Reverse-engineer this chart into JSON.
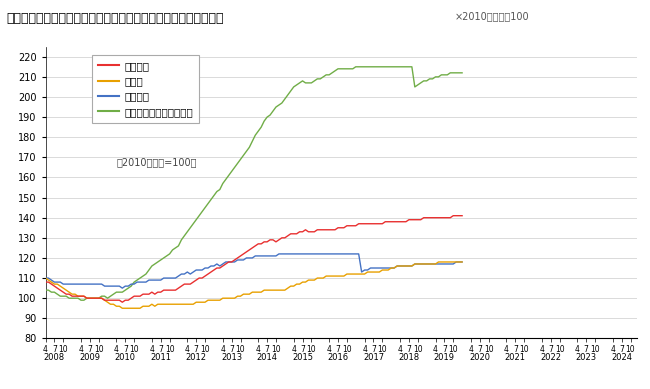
{
  "title": "＜不動産価格指数（住宅）（令和６年１０月分・季節調整値）＞",
  "title_note": "×2010年平均＝100",
  "ylabel_note": "（2010年平均=100）",
  "ylim": [
    80,
    225
  ],
  "yticks": [
    80,
    90,
    100,
    110,
    120,
    130,
    140,
    150,
    160,
    170,
    180,
    190,
    200,
    210,
    220
  ],
  "legend": [
    "住宅総合",
    "住宅地",
    "戸建住宅",
    "マンション（区分所有）"
  ],
  "colors": [
    "#e83030",
    "#e8a000",
    "#4472c4",
    "#70ad47"
  ],
  "住宅総合": [
    108,
    108,
    107,
    106,
    105,
    104,
    103,
    102,
    102,
    101,
    101,
    101,
    101,
    101,
    100,
    100,
    100,
    100,
    100,
    100,
    99,
    99,
    99,
    99,
    99,
    99,
    98,
    99,
    99,
    100,
    101,
    101,
    101,
    102,
    102,
    102,
    103,
    102,
    103,
    103,
    104,
    104,
    104,
    104,
    104,
    105,
    106,
    107,
    107,
    107,
    108,
    109,
    110,
    110,
    111,
    112,
    113,
    114,
    115,
    115,
    116,
    117,
    118,
    118,
    119,
    120,
    121,
    122,
    123,
    124,
    125,
    126,
    127,
    127,
    128,
    128,
    129,
    129,
    128,
    129,
    130,
    130,
    131,
    132,
    132,
    132,
    133,
    133,
    134,
    133,
    133,
    133,
    134,
    134,
    134,
    134,
    134,
    134,
    134,
    135,
    135,
    135,
    136,
    136,
    136,
    136,
    137,
    137,
    137,
    137,
    137,
    137,
    137,
    137,
    137,
    138,
    138,
    138,
    138,
    138,
    138,
    138,
    138,
    139,
    139,
    139,
    139,
    139,
    140,
    140,
    140,
    140,
    140,
    140,
    140,
    140,
    140,
    140,
    141,
    141,
    141,
    141
  ],
  "住宅地": [
    110,
    109,
    108,
    107,
    107,
    106,
    105,
    104,
    103,
    102,
    102,
    101,
    101,
    101,
    100,
    100,
    100,
    100,
    100,
    100,
    99,
    98,
    97,
    97,
    96,
    96,
    95,
    95,
    95,
    95,
    95,
    95,
    95,
    96,
    96,
    96,
    97,
    96,
    97,
    97,
    97,
    97,
    97,
    97,
    97,
    97,
    97,
    97,
    97,
    97,
    97,
    98,
    98,
    98,
    98,
    99,
    99,
    99,
    99,
    99,
    100,
    100,
    100,
    100,
    100,
    101,
    101,
    102,
    102,
    102,
    103,
    103,
    103,
    103,
    104,
    104,
    104,
    104,
    104,
    104,
    104,
    104,
    105,
    106,
    106,
    107,
    107,
    108,
    108,
    109,
    109,
    109,
    110,
    110,
    110,
    111,
    111,
    111,
    111,
    111,
    111,
    111,
    112,
    112,
    112,
    112,
    112,
    112,
    112,
    113,
    113,
    113,
    113,
    113,
    114,
    114,
    114,
    115,
    115,
    116,
    116,
    116,
    116,
    116,
    116,
    117,
    117,
    117,
    117,
    117,
    117,
    117,
    117,
    118,
    118,
    118,
    118,
    118,
    118,
    118,
    118,
    118
  ],
  "戸建住宅": [
    110,
    110,
    109,
    108,
    108,
    108,
    107,
    107,
    107,
    107,
    107,
    107,
    107,
    107,
    107,
    107,
    107,
    107,
    107,
    107,
    106,
    106,
    106,
    106,
    106,
    106,
    105,
    106,
    106,
    107,
    107,
    108,
    108,
    108,
    108,
    109,
    109,
    109,
    109,
    109,
    110,
    110,
    110,
    110,
    110,
    111,
    112,
    112,
    113,
    112,
    113,
    114,
    114,
    114,
    115,
    115,
    116,
    116,
    117,
    116,
    117,
    118,
    118,
    118,
    118,
    119,
    119,
    119,
    120,
    120,
    120,
    121,
    121,
    121,
    121,
    121,
    121,
    121,
    121,
    122,
    122,
    122,
    122,
    122,
    122,
    122,
    122,
    122,
    122,
    122,
    122,
    122,
    122,
    122,
    122,
    122,
    122,
    122,
    122,
    122,
    122,
    122,
    122,
    122,
    122,
    122,
    122,
    113,
    114,
    114,
    115,
    115,
    115,
    115,
    115,
    115,
    115,
    115,
    115,
    116,
    116,
    116,
    116,
    116,
    116,
    117,
    117,
    117,
    117,
    117,
    117,
    117,
    117,
    117,
    117,
    117,
    117,
    117,
    117,
    118,
    118,
    118
  ],
  "マンション": [
    104,
    104,
    103,
    103,
    102,
    101,
    101,
    101,
    100,
    100,
    100,
    100,
    99,
    99,
    100,
    100,
    100,
    100,
    100,
    101,
    101,
    100,
    101,
    102,
    103,
    103,
    103,
    104,
    105,
    106,
    108,
    109,
    110,
    111,
    112,
    114,
    116,
    117,
    118,
    119,
    120,
    121,
    122,
    124,
    125,
    126,
    129,
    131,
    133,
    135,
    137,
    139,
    141,
    143,
    145,
    147,
    149,
    151,
    153,
    154,
    157,
    159,
    161,
    163,
    165,
    167,
    169,
    171,
    173,
    175,
    178,
    181,
    183,
    185,
    188,
    190,
    191,
    193,
    195,
    196,
    197,
    199,
    201,
    203,
    205,
    206,
    207,
    208,
    207,
    207,
    207,
    208,
    209,
    209,
    210,
    211,
    211,
    212,
    213,
    214,
    214,
    214,
    214,
    214,
    214,
    215,
    215,
    215,
    215,
    215,
    215,
    215,
    215,
    215,
    215,
    215,
    215,
    215,
    215,
    215,
    215,
    215,
    215,
    215,
    215,
    205,
    206,
    207,
    208,
    208,
    209,
    209,
    210,
    210,
    211,
    211,
    211,
    212,
    212,
    212,
    212,
    212
  ]
}
